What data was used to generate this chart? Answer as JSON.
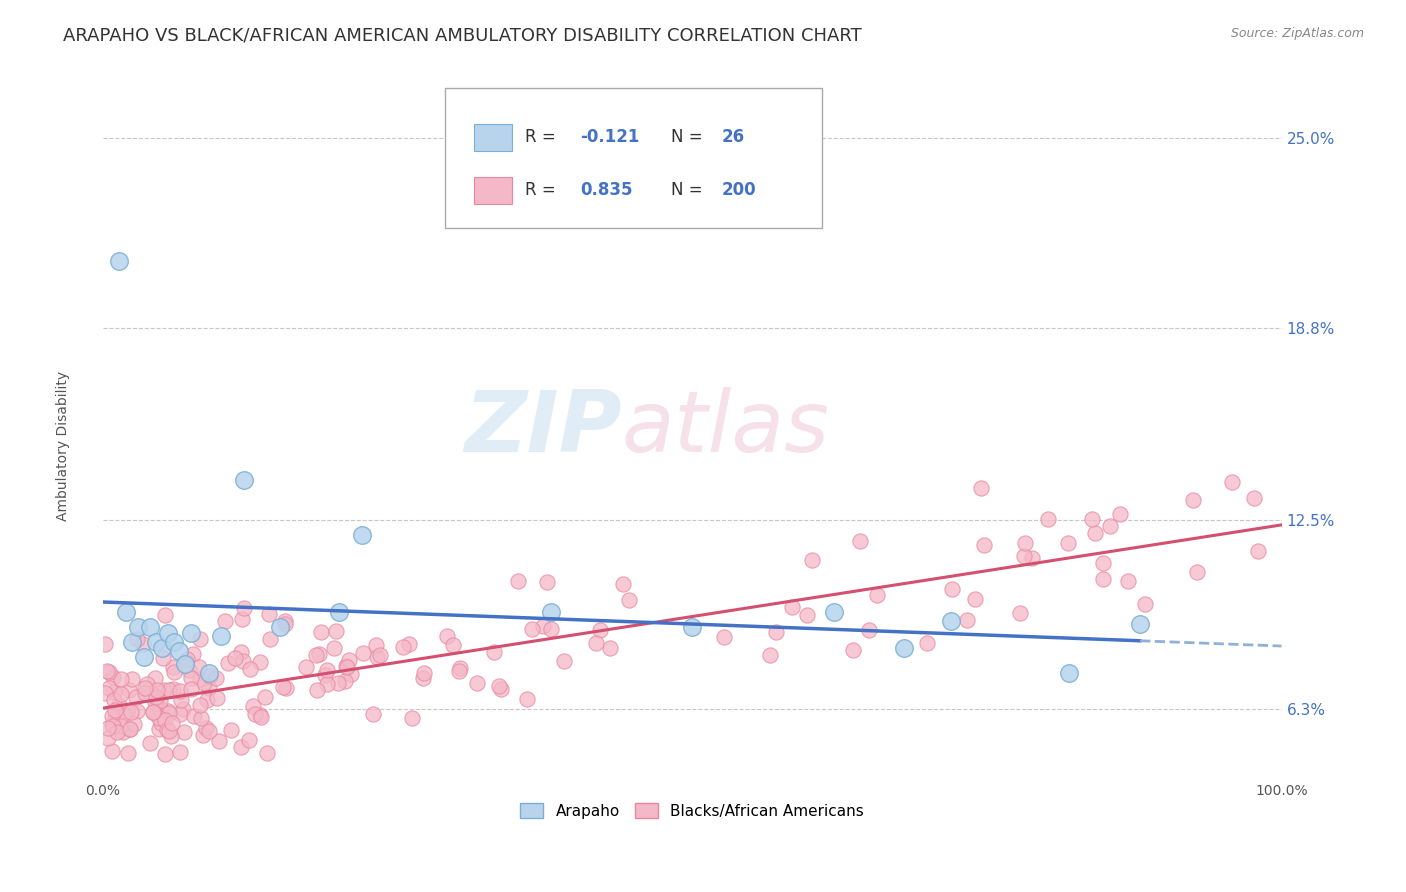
{
  "title": "ARAPAHO VS BLACK/AFRICAN AMERICAN AMBULATORY DISABILITY CORRELATION CHART",
  "source_text": "Source: ZipAtlas.com",
  "ylabel": "Ambulatory Disability",
  "watermark_zip": "ZIP",
  "watermark_atlas": "atlas",
  "legend_r_arapaho": "-0.121",
  "legend_n_arapaho": "26",
  "legend_r_black": "0.835",
  "legend_n_black": "200",
  "color_arapaho_fill": "#b8d4ed",
  "color_arapaho_edge": "#7bafd4",
  "color_black_fill": "#f4b8c8",
  "color_black_edge": "#e888a0",
  "trendline_arapaho": "#4472c4",
  "trendline_black": "#d45070",
  "trendline_arapaho_dashed": "#90b0d8",
  "xlim": [
    0.0,
    1.0
  ],
  "ylim": [
    0.04,
    0.27
  ],
  "ytick_positions": [
    0.063,
    0.125,
    0.188,
    0.25
  ],
  "ytick_labels": [
    "6.3%",
    "12.5%",
    "18.8%",
    "25.0%"
  ],
  "xtick_positions": [
    0.0,
    1.0
  ],
  "xtick_labels": [
    "0.0%",
    "100.0%"
  ],
  "background_color": "#ffffff",
  "grid_color": "#c8c8c8",
  "title_color": "#333333",
  "title_fontsize": 13,
  "axis_label_fontsize": 10,
  "source_fontsize": 9,
  "blue_text_color": "#4472c4",
  "dark_text_color": "#333333"
}
